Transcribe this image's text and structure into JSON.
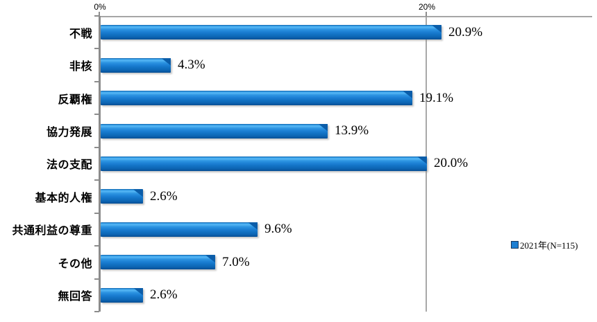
{
  "chart_data": {
    "type": "bar",
    "orientation": "horizontal",
    "title": "",
    "categories": [
      "不戦",
      "非核",
      "反覇権",
      "協力発展",
      "法の支配",
      "基本的人権",
      "共通利益の尊重",
      "その他",
      "無回答"
    ],
    "series": [
      {
        "name": "2021年(N=115)",
        "values": [
          20.9,
          4.3,
          19.1,
          13.9,
          20.0,
          2.6,
          9.6,
          7.0,
          2.6
        ]
      }
    ],
    "value_labels": [
      "20.9%",
      "4.3%",
      "19.1%",
      "13.9%",
      "20.0%",
      "2.6%",
      "9.6%",
      "7.0%",
      "2.6%"
    ],
    "x_axis": {
      "position": "top",
      "min": 0,
      "max": 30,
      "ticks": [
        {
          "label": "0%",
          "value": 0
        },
        {
          "label": "20%",
          "value": 20
        }
      ]
    },
    "grid": "vertical-major",
    "bar_color": "#1e7fd2",
    "legend": {
      "position": "right",
      "items": [
        {
          "label": "2021年(N=115)",
          "color": "#1e7fd2"
        }
      ]
    }
  }
}
